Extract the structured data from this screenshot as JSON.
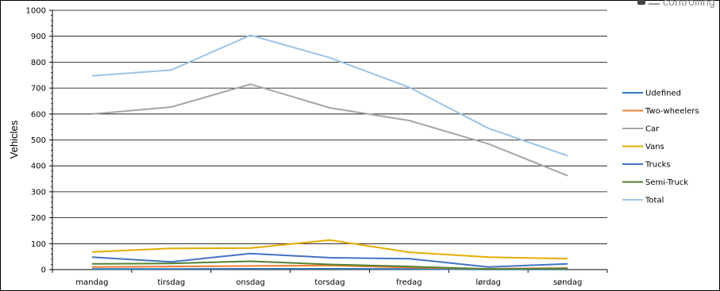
{
  "logo": {
    "text": "controlling"
  },
  "chart_data": {
    "type": "line",
    "title": "",
    "xlabel": "",
    "ylabel": "Vehicles",
    "ylim": [
      0,
      1000
    ],
    "yticks": [
      0,
      100,
      200,
      300,
      400,
      500,
      600,
      700,
      800,
      900,
      1000
    ],
    "grid": true,
    "legend_position": "right",
    "categories": [
      "mandag",
      "tirsdag",
      "onsdag",
      "torsdag",
      "fredag",
      "lørdag",
      "søndag"
    ],
    "series": [
      {
        "name": "Udefined",
        "color": "#2e75b6",
        "values": [
          2,
          2,
          3,
          3,
          2,
          1,
          1
        ]
      },
      {
        "name": "Two-wheelers",
        "color": "#ed7d31",
        "values": [
          10,
          12,
          14,
          16,
          8,
          3,
          6
        ]
      },
      {
        "name": "Car",
        "color": "#a5a5a5",
        "values": [
          600,
          627,
          715,
          624,
          575,
          485,
          362
        ]
      },
      {
        "name": "Vans",
        "color": "#e6ac00",
        "values": [
          68,
          82,
          83,
          114,
          67,
          48,
          42
        ]
      },
      {
        "name": "Trucks",
        "color": "#4472c4",
        "values": [
          48,
          30,
          62,
          46,
          42,
          10,
          22
        ]
      },
      {
        "name": "Semi-Truck",
        "color": "#548235",
        "values": [
          22,
          24,
          32,
          20,
          12,
          2,
          4
        ]
      },
      {
        "name": "Total",
        "color": "#9dc3e6",
        "values": [
          747,
          770,
          904,
          817,
          703,
          545,
          439
        ]
      }
    ]
  }
}
